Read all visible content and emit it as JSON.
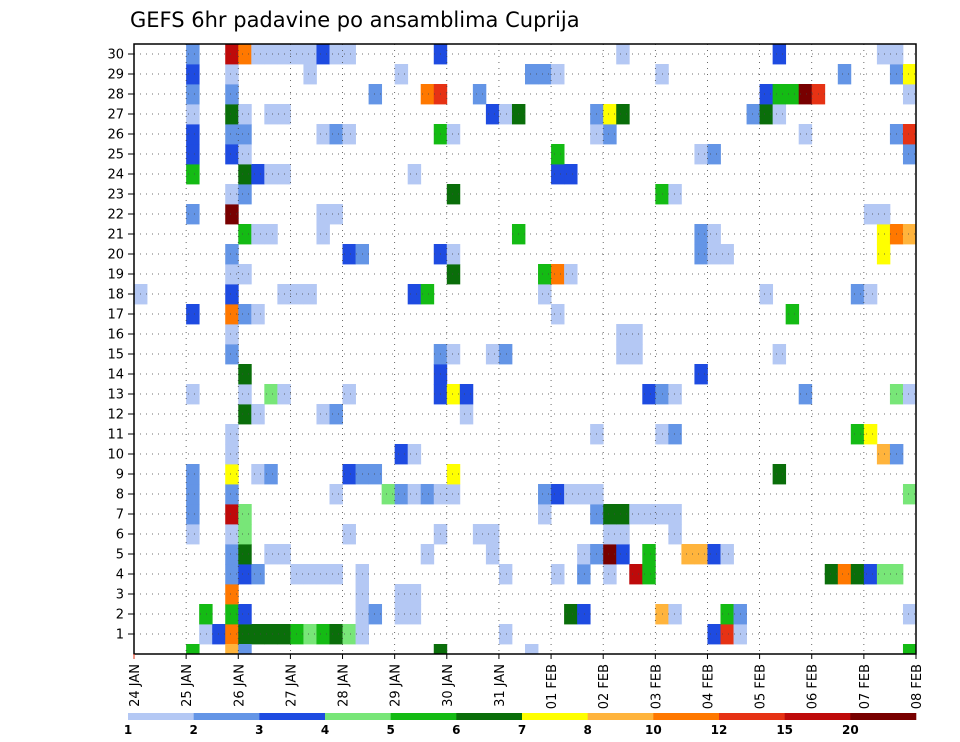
{
  "chart_data": {
    "type": "heatmap",
    "title": "GEFS 6hr padavine po ansamblima Cuprija",
    "xlabel": "",
    "ylabel": "",
    "x_ticks": [
      "24 JAN",
      "25 JAN",
      "26 JAN",
      "27 JAN",
      "28 JAN",
      "29 JAN",
      "30 JAN",
      "31 JAN",
      "01 FEB",
      "02 FEB",
      "03 FEB",
      "04 FEB",
      "05 FEB",
      "06 FEB",
      "07 FEB",
      "08 FEB"
    ],
    "y_ticks": [
      "1",
      "2",
      "3",
      "4",
      "5",
      "6",
      "7",
      "8",
      "9",
      "10",
      "11",
      "12",
      "13",
      "14",
      "15",
      "16",
      "17",
      "18",
      "19",
      "20",
      "21",
      "22",
      "23",
      "24",
      "25",
      "26",
      "27",
      "28",
      "29",
      "30"
    ],
    "xlim": [
      "24 JAN",
      "08 FEB"
    ],
    "ylim": [
      0,
      30
    ],
    "grid": true,
    "colorbar": {
      "labels": [
        "1",
        "2",
        "3",
        "4",
        "5",
        "6",
        "7",
        "8",
        "10",
        "12",
        "15",
        "20"
      ],
      "colors": [
        "#b4c8f4",
        "#6495e6",
        "#1e4be1",
        "#78e678",
        "#14bb14",
        "#0a6e0a",
        "#ffff00",
        "#ffb43c",
        "#ff7800",
        "#e63214",
        "#be0a0a",
        "#780000"
      ]
    },
    "cells": [
      [
        1,
        5,
        1
      ],
      [
        1,
        6,
        3
      ],
      [
        1,
        7,
        9
      ],
      [
        1,
        8,
        6
      ],
      [
        1,
        9,
        6
      ],
      [
        1,
        10,
        6
      ],
      [
        1,
        11,
        6
      ],
      [
        1,
        12,
        5
      ],
      [
        1,
        13,
        4
      ],
      [
        1,
        14,
        5
      ],
      [
        1,
        15,
        6
      ],
      [
        1,
        16,
        4
      ],
      [
        1,
        17,
        1
      ],
      [
        1,
        28,
        1
      ],
      [
        1,
        44,
        3
      ],
      [
        1,
        45,
        10
      ],
      [
        1,
        46,
        1
      ],
      [
        2,
        5,
        5
      ],
      [
        2,
        7,
        5
      ],
      [
        2,
        8,
        3
      ],
      [
        2,
        17,
        1
      ],
      [
        2,
        18,
        2
      ],
      [
        2,
        20,
        1
      ],
      [
        2,
        21,
        1
      ],
      [
        2,
        33,
        6
      ],
      [
        2,
        34,
        3
      ],
      [
        2,
        40,
        8
      ],
      [
        2,
        41,
        1
      ],
      [
        2,
        45,
        5
      ],
      [
        2,
        46,
        2
      ],
      [
        2,
        59,
        1
      ],
      [
        3,
        7,
        9
      ],
      [
        3,
        17,
        1
      ],
      [
        3,
        20,
        1
      ],
      [
        3,
        21,
        1
      ],
      [
        4,
        7,
        2
      ],
      [
        4,
        8,
        3
      ],
      [
        4,
        9,
        2
      ],
      [
        4,
        12,
        1
      ],
      [
        4,
        13,
        1
      ],
      [
        4,
        14,
        1
      ],
      [
        4,
        15,
        1
      ],
      [
        4,
        17,
        1
      ],
      [
        4,
        28,
        1
      ],
      [
        4,
        32,
        1
      ],
      [
        4,
        34,
        2
      ],
      [
        4,
        36,
        1
      ],
      [
        4,
        38,
        11
      ],
      [
        4,
        39,
        5
      ],
      [
        4,
        53,
        6
      ],
      [
        4,
        54,
        9
      ],
      [
        4,
        55,
        6
      ],
      [
        4,
        56,
        3
      ],
      [
        4,
        57,
        4
      ],
      [
        4,
        58,
        4
      ],
      [
        5,
        7,
        2
      ],
      [
        5,
        8,
        6
      ],
      [
        5,
        10,
        1
      ],
      [
        5,
        11,
        1
      ],
      [
        5,
        22,
        1
      ],
      [
        5,
        27,
        1
      ],
      [
        5,
        34,
        1
      ],
      [
        5,
        35,
        2
      ],
      [
        5,
        36,
        12
      ],
      [
        5,
        37,
        3
      ],
      [
        5,
        39,
        5
      ],
      [
        5,
        42,
        8
      ],
      [
        5,
        43,
        8
      ],
      [
        5,
        44,
        3
      ],
      [
        5,
        45,
        1
      ],
      [
        6,
        4,
        1
      ],
      [
        6,
        7,
        1
      ],
      [
        6,
        8,
        4
      ],
      [
        6,
        16,
        1
      ],
      [
        6,
        23,
        1
      ],
      [
        6,
        26,
        1
      ],
      [
        6,
        27,
        1
      ],
      [
        6,
        36,
        1
      ],
      [
        6,
        37,
        1
      ],
      [
        6,
        41,
        1
      ],
      [
        7,
        4,
        2
      ],
      [
        7,
        7,
        11
      ],
      [
        7,
        8,
        4
      ],
      [
        7,
        31,
        1
      ],
      [
        7,
        35,
        2
      ],
      [
        7,
        36,
        6
      ],
      [
        7,
        37,
        6
      ],
      [
        7,
        38,
        1
      ],
      [
        7,
        39,
        1
      ],
      [
        7,
        40,
        1
      ],
      [
        7,
        41,
        1
      ],
      [
        8,
        4,
        2
      ],
      [
        8,
        7,
        2
      ],
      [
        8,
        15,
        1
      ],
      [
        8,
        19,
        4
      ],
      [
        8,
        20,
        2
      ],
      [
        8,
        21,
        1
      ],
      [
        8,
        22,
        2
      ],
      [
        8,
        23,
        1
      ],
      [
        8,
        24,
        1
      ],
      [
        8,
        31,
        2
      ],
      [
        8,
        32,
        3
      ],
      [
        8,
        33,
        1
      ],
      [
        8,
        34,
        1
      ],
      [
        8,
        35,
        1
      ],
      [
        8,
        59,
        4
      ],
      [
        9,
        4,
        2
      ],
      [
        9,
        7,
        7
      ],
      [
        9,
        9,
        1
      ],
      [
        9,
        10,
        2
      ],
      [
        9,
        16,
        3
      ],
      [
        9,
        17,
        2
      ],
      [
        9,
        18,
        2
      ],
      [
        9,
        24,
        7
      ],
      [
        9,
        49,
        6
      ],
      [
        10,
        7,
        1
      ],
      [
        10,
        20,
        3
      ],
      [
        10,
        21,
        1
      ],
      [
        10,
        57,
        8
      ],
      [
        10,
        58,
        2
      ],
      [
        11,
        7,
        1
      ],
      [
        11,
        35,
        1
      ],
      [
        11,
        40,
        1
      ],
      [
        11,
        41,
        2
      ],
      [
        11,
        55,
        5
      ],
      [
        11,
        56,
        7
      ],
      [
        12,
        8,
        6
      ],
      [
        12,
        9,
        1
      ],
      [
        12,
        14,
        1
      ],
      [
        12,
        15,
        2
      ],
      [
        12,
        25,
        1
      ],
      [
        13,
        4,
        1
      ],
      [
        13,
        8,
        1
      ],
      [
        13,
        10,
        4
      ],
      [
        13,
        11,
        1
      ],
      [
        13,
        16,
        1
      ],
      [
        13,
        23,
        3
      ],
      [
        13,
        24,
        7
      ],
      [
        13,
        25,
        3
      ],
      [
        13,
        39,
        3
      ],
      [
        13,
        40,
        2
      ],
      [
        13,
        41,
        1
      ],
      [
        13,
        51,
        2
      ],
      [
        13,
        58,
        4
      ],
      [
        13,
        59,
        1
      ],
      [
        14,
        8,
        6
      ],
      [
        14,
        23,
        3
      ],
      [
        14,
        43,
        3
      ],
      [
        15,
        7,
        2
      ],
      [
        15,
        23,
        2
      ],
      [
        15,
        24,
        1
      ],
      [
        15,
        27,
        1
      ],
      [
        15,
        28,
        2
      ],
      [
        15,
        37,
        1
      ],
      [
        15,
        38,
        1
      ],
      [
        15,
        49,
        1
      ],
      [
        16,
        37,
        1
      ],
      [
        16,
        38,
        1
      ],
      [
        16,
        7,
        1
      ],
      [
        17,
        4,
        3
      ],
      [
        17,
        7,
        9
      ],
      [
        17,
        8,
        2
      ],
      [
        17,
        9,
        1
      ],
      [
        17,
        32,
        1
      ],
      [
        17,
        50,
        5
      ],
      [
        18,
        0,
        1
      ],
      [
        18,
        7,
        3
      ],
      [
        18,
        11,
        1
      ],
      [
        18,
        12,
        1
      ],
      [
        18,
        13,
        1
      ],
      [
        18,
        21,
        3
      ],
      [
        18,
        22,
        5
      ],
      [
        18,
        31,
        1
      ],
      [
        18,
        48,
        1
      ],
      [
        18,
        55,
        2
      ],
      [
        18,
        56,
        1
      ],
      [
        19,
        7,
        1
      ],
      [
        19,
        8,
        1
      ],
      [
        19,
        24,
        6
      ],
      [
        19,
        31,
        5
      ],
      [
        19,
        32,
        9
      ],
      [
        19,
        33,
        1
      ],
      [
        20,
        7,
        2
      ],
      [
        20,
        16,
        3
      ],
      [
        20,
        17,
        2
      ],
      [
        20,
        23,
        3
      ],
      [
        20,
        24,
        1
      ],
      [
        20,
        43,
        2
      ],
      [
        20,
        44,
        1
      ],
      [
        20,
        45,
        1
      ],
      [
        20,
        57,
        7
      ],
      [
        21,
        8,
        5
      ],
      [
        21,
        9,
        1
      ],
      [
        21,
        10,
        1
      ],
      [
        21,
        14,
        1
      ],
      [
        21,
        29,
        5
      ],
      [
        21,
        43,
        2
      ],
      [
        21,
        44,
        1
      ],
      [
        21,
        57,
        7
      ],
      [
        21,
        58,
        9
      ],
      [
        21,
        59,
        8
      ],
      [
        22,
        4,
        2
      ],
      [
        22,
        7,
        12
      ],
      [
        22,
        14,
        1
      ],
      [
        22,
        15,
        1
      ],
      [
        22,
        56,
        1
      ],
      [
        22,
        57,
        1
      ],
      [
        23,
        7,
        1
      ],
      [
        23,
        8,
        2
      ],
      [
        23,
        24,
        6
      ],
      [
        23,
        40,
        5
      ],
      [
        23,
        41,
        1
      ],
      [
        24,
        4,
        5
      ],
      [
        24,
        8,
        6
      ],
      [
        24,
        9,
        3
      ],
      [
        24,
        10,
        1
      ],
      [
        24,
        11,
        1
      ],
      [
        24,
        21,
        1
      ],
      [
        24,
        32,
        3
      ],
      [
        24,
        33,
        3
      ],
      [
        25,
        4,
        3
      ],
      [
        25,
        7,
        3
      ],
      [
        25,
        8,
        1
      ],
      [
        25,
        32,
        5
      ],
      [
        25,
        43,
        1
      ],
      [
        25,
        44,
        2
      ],
      [
        25,
        59,
        2
      ],
      [
        26,
        4,
        3
      ],
      [
        26,
        7,
        2
      ],
      [
        26,
        8,
        2
      ],
      [
        26,
        14,
        1
      ],
      [
        26,
        15,
        2
      ],
      [
        26,
        16,
        1
      ],
      [
        26,
        23,
        5
      ],
      [
        26,
        24,
        1
      ],
      [
        26,
        35,
        1
      ],
      [
        26,
        36,
        2
      ],
      [
        26,
        51,
        1
      ],
      [
        26,
        58,
        2
      ],
      [
        26,
        59,
        10
      ],
      [
        27,
        4,
        1
      ],
      [
        27,
        7,
        6
      ],
      [
        27,
        8,
        1
      ],
      [
        27,
        10,
        1
      ],
      [
        27,
        11,
        1
      ],
      [
        27,
        27,
        3
      ],
      [
        27,
        28,
        1
      ],
      [
        27,
        29,
        6
      ],
      [
        27,
        35,
        2
      ],
      [
        27,
        36,
        7
      ],
      [
        27,
        37,
        6
      ],
      [
        27,
        47,
        2
      ],
      [
        27,
        48,
        6
      ],
      [
        27,
        49,
        1
      ],
      [
        28,
        4,
        2
      ],
      [
        28,
        7,
        2
      ],
      [
        28,
        18,
        2
      ],
      [
        28,
        22,
        9
      ],
      [
        28,
        23,
        10
      ],
      [
        28,
        26,
        2
      ],
      [
        28,
        48,
        3
      ],
      [
        28,
        49,
        5
      ],
      [
        28,
        50,
        5
      ],
      [
        28,
        51,
        12
      ],
      [
        28,
        52,
        10
      ],
      [
        28,
        59,
        1
      ],
      [
        29,
        4,
        3
      ],
      [
        29,
        7,
        1
      ],
      [
        29,
        13,
        1
      ],
      [
        29,
        20,
        1
      ],
      [
        29,
        30,
        2
      ],
      [
        29,
        31,
        2
      ],
      [
        29,
        32,
        1
      ],
      [
        29,
        40,
        1
      ],
      [
        29,
        54,
        2
      ],
      [
        29,
        58,
        2
      ],
      [
        29,
        59,
        7
      ],
      [
        30,
        4,
        2
      ],
      [
        30,
        7,
        11
      ],
      [
        30,
        8,
        9
      ],
      [
        30,
        9,
        1
      ],
      [
        30,
        10,
        1
      ],
      [
        30,
        11,
        1
      ],
      [
        30,
        12,
        1
      ],
      [
        30,
        13,
        1
      ],
      [
        30,
        14,
        3
      ],
      [
        30,
        15,
        1
      ],
      [
        30,
        16,
        1
      ],
      [
        30,
        23,
        3
      ],
      [
        30,
        37,
        1
      ],
      [
        30,
        49,
        3
      ],
      [
        30,
        57,
        1
      ],
      [
        30,
        58,
        1
      ],
      [
        0,
        4,
        5
      ],
      [
        0,
        7,
        8
      ],
      [
        0,
        8,
        2
      ],
      [
        0,
        23,
        6
      ],
      [
        0,
        30,
        1
      ],
      [
        0,
        59,
        5
      ]
    ]
  }
}
